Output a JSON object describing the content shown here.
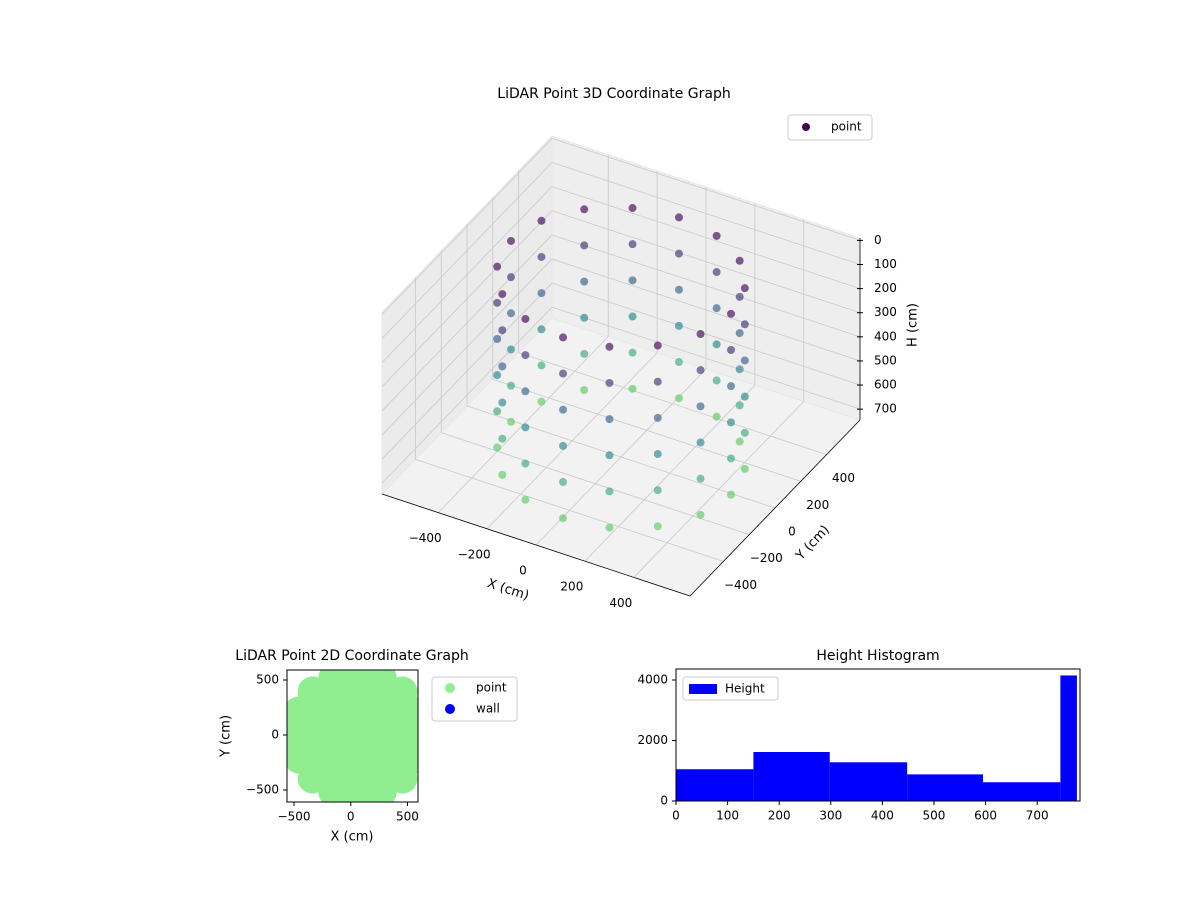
{
  "chart_data": [
    {
      "type": "scatter3d",
      "title": "LiDAR Point 3D Coordinate Graph",
      "x_label": "X (cm)",
      "y_label": "Y (cm)",
      "z_label": "H (cm)",
      "xlim": [
        -630,
        630
      ],
      "ylim": [
        -660,
        660
      ],
      "zlim": [
        -10,
        745
      ],
      "z_inverted": true,
      "xticks": [
        {
          "value": -400,
          "label": "−400"
        },
        {
          "value": -200,
          "label": "−200"
        },
        0,
        200,
        400
      ],
      "yticks": [
        {
          "value": -400,
          "label": "−400"
        },
        {
          "value": -200,
          "label": "−200"
        },
        0,
        200,
        400
      ],
      "zticks": [
        0,
        100,
        200,
        300,
        400,
        500,
        600,
        700
      ],
      "color_stops": [
        "#440154",
        "#3b528b",
        "#21918c",
        "#5ec962"
      ],
      "legend": "upper right",
      "series": [
        {
          "name": "point",
          "color": "#440154",
          "x": [
            450,
            416,
            318,
            172,
            0,
            -172,
            -318,
            -416,
            -450,
            -416,
            -318,
            -172,
            0,
            172,
            318,
            416,
            450,
            416,
            318,
            172,
            0,
            -172,
            -318,
            -416,
            -450,
            -416,
            -318,
            -172,
            0,
            172,
            318,
            416,
            450,
            416,
            318,
            172,
            0,
            -172,
            -318,
            -416,
            -450,
            -416,
            -318,
            -172,
            0,
            172,
            318,
            416,
            450,
            416,
            318,
            172,
            0,
            -172,
            -318,
            -416,
            -450,
            -416,
            -318,
            -172,
            0,
            172,
            318,
            416,
            450,
            416,
            318,
            172,
            0,
            -172,
            -318,
            -416,
            -450,
            -416,
            -318,
            -172,
            0,
            172,
            318,
            416,
            450,
            416,
            318,
            172,
            0,
            -172,
            -318,
            -416,
            -450,
            -416,
            -318,
            -172,
            0,
            172,
            318,
            416
          ],
          "y": [
            0,
            172,
            318,
            416,
            450,
            416,
            318,
            172,
            0,
            -172,
            -318,
            -416,
            -450,
            -416,
            -318,
            -172,
            0,
            172,
            318,
            416,
            450,
            416,
            318,
            172,
            0,
            -172,
            -318,
            -416,
            -450,
            -416,
            -318,
            -172,
            0,
            172,
            318,
            416,
            450,
            416,
            318,
            172,
            0,
            -172,
            -318,
            -416,
            -450,
            -416,
            -318,
            -172,
            0,
            172,
            318,
            416,
            450,
            416,
            318,
            172,
            0,
            -172,
            -318,
            -416,
            -450,
            -416,
            -318,
            -172,
            0,
            172,
            318,
            416,
            450,
            416,
            318,
            172,
            0,
            -172,
            -318,
            -416,
            -450,
            -416,
            -318,
            -172,
            0,
            172,
            318,
            416,
            450,
            416,
            318,
            172,
            0,
            -172,
            -318,
            -416,
            -450,
            -416,
            -318,
            -172
          ],
          "z": [
            0,
            0,
            0,
            0,
            0,
            0,
            0,
            0,
            0,
            0,
            0,
            0,
            0,
            0,
            0,
            0,
            150,
            150,
            150,
            150,
            150,
            150,
            150,
            150,
            150,
            150,
            150,
            150,
            150,
            150,
            150,
            150,
            300,
            300,
            300,
            300,
            300,
            300,
            300,
            300,
            300,
            300,
            300,
            300,
            300,
            300,
            300,
            300,
            450,
            450,
            450,
            450,
            450,
            450,
            450,
            450,
            450,
            450,
            450,
            450,
            450,
            450,
            450,
            450,
            600,
            600,
            600,
            600,
            600,
            600,
            600,
            600,
            600,
            600,
            600,
            600,
            600,
            600,
            600,
            600,
            750,
            750,
            750,
            750,
            750,
            750,
            750,
            750,
            750,
            750,
            750,
            750,
            750,
            750,
            750,
            750
          ]
        }
      ]
    },
    {
      "type": "scatter",
      "title": "LiDAR Point 2D Coordinate Graph",
      "x_label": "X (cm)",
      "y_label": "Y (cm)",
      "xlim": [
        -562,
        593
      ],
      "ylim": [
        -609,
        591
      ],
      "xticks": [
        {
          "value": -500,
          "label": "−500"
        },
        0,
        500
      ],
      "yticks": [
        {
          "value": -500,
          "label": "−500"
        },
        0,
        500
      ],
      "legend": "outside upper right",
      "series": [
        {
          "name": "point",
          "color": "#90ee90",
          "x": [
            60,
            260,
            201,
            60,
            -81,
            -140,
            -81,
            60,
            201,
            460,
            406,
            260,
            60,
            -140,
            -286,
            -340,
            -286,
            -140,
            60,
            260,
            406,
            620,
            577,
            456,
            274,
            60,
            -154,
            -336,
            -457,
            -500,
            -457,
            -336,
            -154,
            60,
            274,
            456,
            577
          ],
          "y": [
            0,
            0,
            141,
            200,
            141,
            0,
            -141,
            -200,
            -141,
            0,
            200,
            346,
            400,
            346,
            200,
            0,
            -200,
            -346,
            -400,
            -346,
            -200,
            0,
            214,
            396,
            517,
            560,
            517,
            396,
            214,
            0,
            -214,
            -396,
            -517,
            -560,
            -517,
            -396,
            -214
          ]
        },
        {
          "name": "wall",
          "color": "#0000ff",
          "x": [],
          "y": []
        }
      ]
    },
    {
      "type": "histogram",
      "title": "Height Histogram",
      "xlim": [
        0,
        783
      ],
      "ylim": [
        0,
        4364
      ],
      "xticks": [
        0,
        100,
        200,
        300,
        400,
        500,
        600,
        700
      ],
      "yticks": [
        0,
        2000,
        4000
      ],
      "legend": "upper left",
      "series": [
        {
          "name": "Height",
          "color": "#0000ff",
          "bins": [
            0,
            150,
            298,
            448,
            595,
            745,
            777
          ],
          "values": [
            1050,
            1620,
            1280,
            880,
            620,
            4150
          ]
        }
      ]
    }
  ]
}
